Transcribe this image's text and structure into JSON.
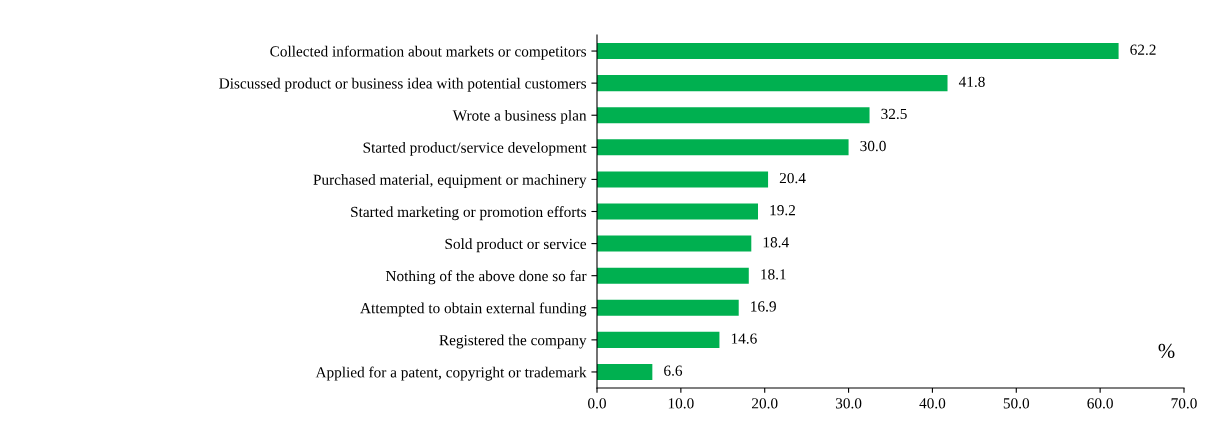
{
  "chart_data": {
    "type": "bar",
    "orientation": "horizontal",
    "categories": [
      "Collected information about markets or competitors",
      "Discussed product or business idea with potential customers",
      "Wrote a business plan",
      "Started product/service development",
      "Purchased material, equipment or machinery",
      "Started marketing or promotion efforts",
      "Sold product or service",
      "Nothing of the above done so far",
      "Attempted to obtain external funding",
      "Registered the company",
      "Applied for a patent, copyright or trademark"
    ],
    "values": [
      62.2,
      41.8,
      32.5,
      30.0,
      20.4,
      19.2,
      18.4,
      18.1,
      16.9,
      14.6,
      6.6
    ],
    "value_labels": [
      "62.2",
      "41.8",
      "32.5",
      "30.0",
      "20.4",
      "19.2",
      "18.4",
      "18.1",
      "16.9",
      "14.6",
      "6.6"
    ],
    "color": "#00b050",
    "xlim": [
      0,
      70
    ],
    "xticks": [
      {
        "value": 0,
        "label": "0.0"
      },
      {
        "value": 10,
        "label": "10.0"
      },
      {
        "value": 20,
        "label": "20.0"
      },
      {
        "value": 30,
        "label": "30.0"
      },
      {
        "value": 40,
        "label": "40.0"
      },
      {
        "value": 50,
        "label": "50.0"
      },
      {
        "value": 60,
        "label": "60.0"
      },
      {
        "value": 70,
        "label": "70.0"
      }
    ],
    "annotations": [
      "%"
    ],
    "grid": false,
    "legend": false
  }
}
